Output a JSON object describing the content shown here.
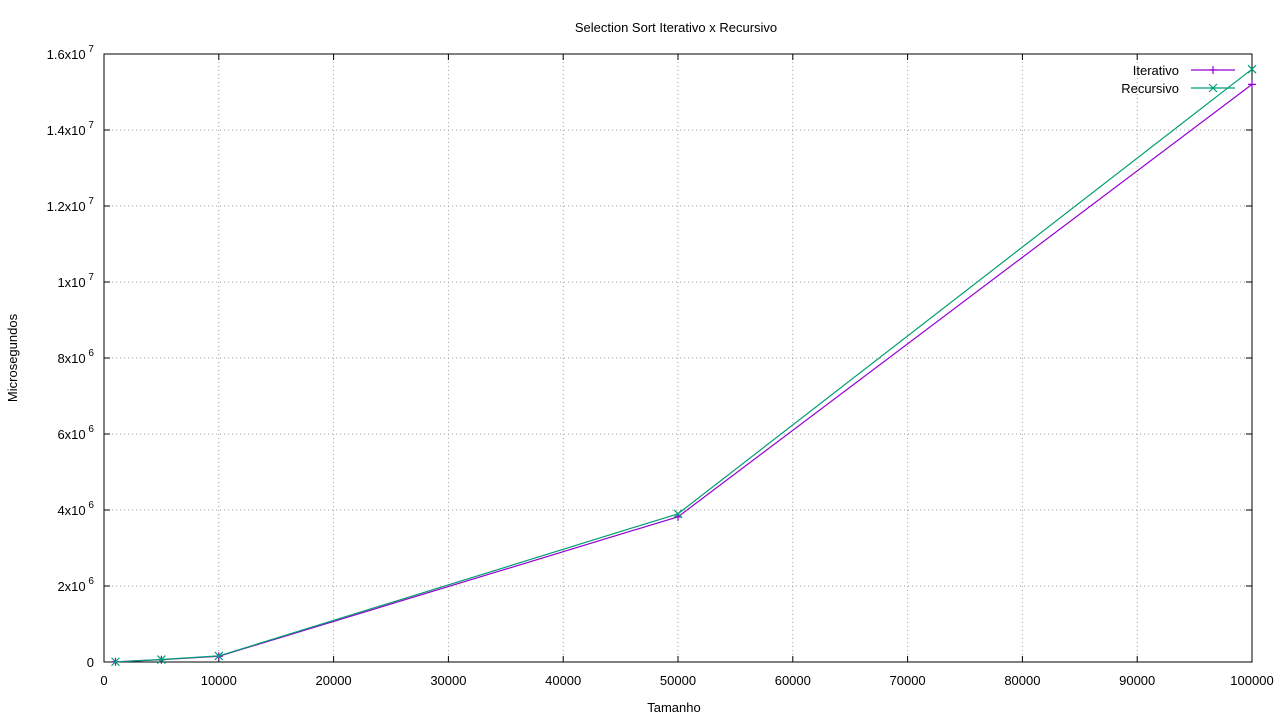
{
  "chart_data": {
    "type": "line",
    "title": "Selection Sort Iterativo x Recursivo",
    "xlabel": "Tamanho",
    "ylabel": "Microsegundos",
    "xlim": [
      0,
      100000
    ],
    "ylim": [
      0,
      16000000
    ],
    "grid": true,
    "legend_position": "top-right",
    "x_ticks": [
      {
        "value": 0,
        "label": "0"
      },
      {
        "value": 10000,
        "label": "10000"
      },
      {
        "value": 20000,
        "label": "20000"
      },
      {
        "value": 30000,
        "label": "30000"
      },
      {
        "value": 40000,
        "label": "40000"
      },
      {
        "value": 50000,
        "label": "50000"
      },
      {
        "value": 60000,
        "label": "60000"
      },
      {
        "value": 70000,
        "label": "70000"
      },
      {
        "value": 80000,
        "label": "80000"
      },
      {
        "value": 90000,
        "label": "90000"
      },
      {
        "value": 100000,
        "label": "100000"
      }
    ],
    "y_ticks": [
      {
        "value": 0,
        "mantissa": "0",
        "exponent": ""
      },
      {
        "value": 2000000,
        "mantissa": "2x10",
        "exponent": "6"
      },
      {
        "value": 4000000,
        "mantissa": "4x10",
        "exponent": "6"
      },
      {
        "value": 6000000,
        "mantissa": "6x10",
        "exponent": "6"
      },
      {
        "value": 8000000,
        "mantissa": "8x10",
        "exponent": "6"
      },
      {
        "value": 10000000,
        "mantissa": "1x10",
        "exponent": "7"
      },
      {
        "value": 12000000,
        "mantissa": "1.2x10",
        "exponent": "7"
      },
      {
        "value": 14000000,
        "mantissa": "1.4x10",
        "exponent": "7"
      },
      {
        "value": 16000000,
        "mantissa": "1.6x10",
        "exponent": "7"
      }
    ],
    "series": [
      {
        "name": "Iterativo",
        "color": "#9400d3",
        "marker": "plus",
        "x": [
          1000,
          5000,
          10000,
          50000,
          100000
        ],
        "y": [
          6000,
          60000,
          150000,
          3820000,
          15200000
        ]
      },
      {
        "name": "Recursivo",
        "color": "#009e73",
        "marker": "cross",
        "x": [
          1000,
          5000,
          10000,
          50000,
          100000
        ],
        "y": [
          6500,
          65000,
          160000,
          3900000,
          15600000
        ]
      }
    ]
  }
}
